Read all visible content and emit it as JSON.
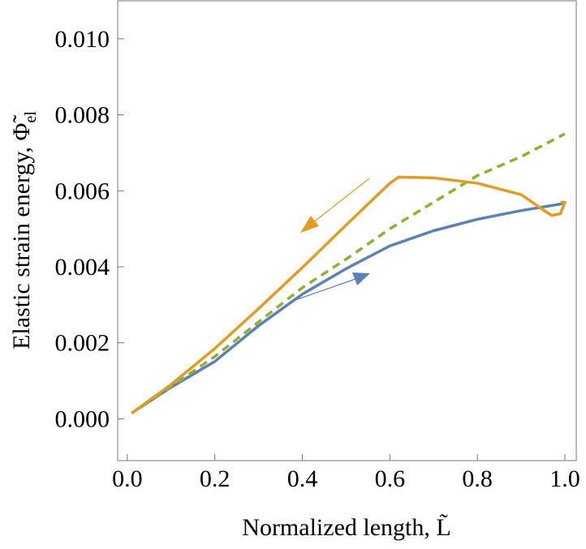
{
  "chart_data": {
    "type": "line",
    "xlabel": "Normalized length, L̃",
    "ylabel": "Elastic strain energy, Φ̃",
    "ylabel_subscript": "el",
    "xlim": [
      -0.022,
      1.026
    ],
    "ylim": [
      -0.0011,
      0.011
    ],
    "xticks": [
      {
        "value": 0,
        "label": "0.0"
      },
      {
        "value": 0.2,
        "label": "0.2"
      },
      {
        "value": 0.4,
        "label": "0.4"
      },
      {
        "value": 0.6,
        "label": "0.6"
      },
      {
        "value": 0.8,
        "label": "0.8"
      },
      {
        "value": 1,
        "label": "1.0"
      }
    ],
    "yticks": [
      {
        "value": 0,
        "label": "0.000"
      },
      {
        "value": 0.002,
        "label": "0.002"
      },
      {
        "value": 0.004,
        "label": "0.004"
      },
      {
        "value": 0.006,
        "label": "0.006"
      },
      {
        "value": 0.008,
        "label": "0.008"
      },
      {
        "value": 0.01,
        "label": "0.010"
      }
    ],
    "series": [
      {
        "color": "#5e81b5",
        "dashed": false,
        "x": [
          0.01,
          0.1,
          0.2,
          0.3,
          0.4,
          0.5,
          0.6,
          0.7,
          0.8,
          0.9,
          1.0
        ],
        "values": [
          0.00015,
          0.00083,
          0.00151,
          0.00245,
          0.00328,
          0.00395,
          0.00455,
          0.00495,
          0.00525,
          0.00548,
          0.00567
        ]
      },
      {
        "color": "#8fb032",
        "dashed": true,
        "x": [
          0.01,
          0.1,
          0.2,
          0.3,
          0.4,
          0.5,
          0.6,
          0.7,
          0.8,
          0.9,
          1.0
        ],
        "values": [
          0.00015,
          0.00085,
          0.00164,
          0.00255,
          0.00345,
          0.0042,
          0.005,
          0.0057,
          0.0064,
          0.0069,
          0.0075
        ]
      },
      {
        "color": "#e19c24",
        "dashed": false,
        "x": [
          0.01,
          0.1,
          0.2,
          0.3,
          0.4,
          0.5,
          0.6,
          0.62,
          0.7,
          0.8,
          0.9,
          0.95,
          0.97,
          0.99,
          1.0,
          0.99
        ],
        "values": [
          0.00015,
          0.0009,
          0.00185,
          0.0029,
          0.00398,
          0.0051,
          0.0062,
          0.00636,
          0.00634,
          0.0062,
          0.0059,
          0.0055,
          0.00535,
          0.0054,
          0.0057,
          0.0057
        ]
      }
    ]
  }
}
